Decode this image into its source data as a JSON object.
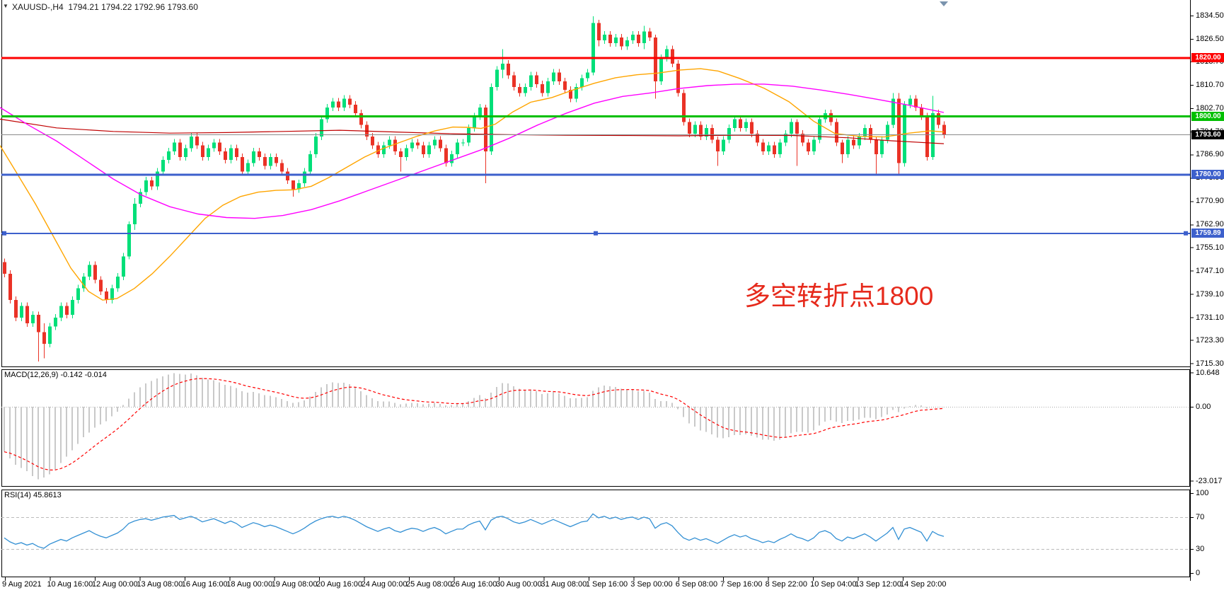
{
  "window": {
    "title_symbol": "XAUUSD-,H4",
    "title_ohlc": "1794.21 1794.22 1792.96 1793.60"
  },
  "annotation": {
    "text": "多空转折点1800",
    "color": "#e62a1c"
  },
  "colors": {
    "candle_up": "#00df79",
    "candle_down": "#ea3226",
    "line_1820": "#fe0000",
    "line_1800": "#00bf00",
    "line_blue": "#3d60cc",
    "current_price_line": "#8a8a8a",
    "current_price_badge": "#000000",
    "ma_fast": "#ffa500",
    "ma_mid": "#ff00ff",
    "ma_slow": "#c00000",
    "macd_hist": "#c9c9c9",
    "macd_signal": "#ff0000",
    "rsi_line": "#3390d4",
    "rsi_levels": "#bbbbbb",
    "axis_text": "#000000",
    "panel_border": "#000000",
    "shift_marker": "#7a93ad"
  },
  "chart_data": {
    "type": "candlestick",
    "title": "XAUUSD-,H4",
    "symbol": "XAUUSD",
    "timeframe": "H4",
    "current_ohlc": {
      "open": 1794.21,
      "high": 1794.22,
      "low": 1792.96,
      "close": 1793.6
    },
    "ylim": [
      1715.3,
      1836.4
    ],
    "grid": false,
    "candles": {
      "first_open": 1750,
      "default_wick": 1.2,
      "closes": [
        1746,
        1737,
        1731,
        1735,
        1729,
        1732,
        1726,
        1722,
        1728,
        1731,
        1735,
        1732,
        1737,
        1741,
        1745,
        1749,
        1744,
        1740,
        1737,
        1741,
        1745,
        1752,
        1763,
        1770,
        1774,
        1778,
        1776,
        1781,
        1785,
        1788,
        1791,
        1786,
        1789,
        1793,
        1790,
        1786,
        1789,
        1791,
        1788,
        1785,
        1789,
        1786,
        1781,
        1784,
        1788,
        1786,
        1783,
        1786,
        1784,
        1781,
        1778,
        1775,
        1777,
        1781,
        1787,
        1793,
        1799,
        1803,
        1805,
        1803,
        1806,
        1804,
        1801,
        1797,
        1793,
        1790,
        1787,
        1790,
        1792,
        1788,
        1786,
        1789,
        1791,
        1790,
        1787,
        1790,
        1792,
        1789,
        1784,
        1787,
        1791,
        1791,
        1796,
        1800,
        1803,
        1788,
        1810,
        1816,
        1818,
        1814,
        1810,
        1808,
        1810,
        1814,
        1811,
        1808,
        1812,
        1815,
        1812,
        1809,
        1806,
        1810,
        1813,
        1815,
        1832,
        1826,
        1828,
        1825,
        1827,
        1824,
        1826,
        1828,
        1825,
        1829,
        1827,
        1812,
        1820,
        1823,
        1818,
        1808,
        1798,
        1794,
        1797,
        1793,
        1796,
        1792,
        1788,
        1792,
        1796,
        1799,
        1796,
        1798,
        1794,
        1791,
        1788,
        1790,
        1787,
        1791,
        1794,
        1798,
        1794,
        1791,
        1788,
        1792,
        1799,
        1801,
        1798,
        1791,
        1787,
        1792,
        1790,
        1793,
        1796,
        1792,
        1787,
        1792,
        1797,
        1806,
        1784,
        1804,
        1806,
        1803,
        1800,
        1786,
        1801,
        1797,
        1793.6
      ],
      "wick_overrides": {
        "6": [
          1733,
          1716
        ],
        "7": [
          1729,
          1717
        ],
        "22": [
          1764,
          1751
        ],
        "23": [
          1772,
          1761
        ],
        "51": [
          1778,
          1772.5
        ],
        "70": [
          1789,
          1781
        ],
        "85": [
          1804,
          1777
        ],
        "88": [
          1823,
          1813
        ],
        "104": [
          1834.2,
          1814
        ],
        "105": [
          1833,
          1824
        ],
        "113": [
          1831,
          1823
        ],
        "115": [
          1828,
          1806
        ],
        "126": [
          1793,
          1783
        ],
        "140": [
          1799,
          1783
        ],
        "148": [
          1792,
          1784
        ],
        "154": [
          1793,
          1780
        ],
        "157": [
          1808,
          1796
        ],
        "158": [
          1808,
          1780
        ],
        "164": [
          1807,
          1785
        ]
      }
    },
    "hlines": [
      {
        "price": 1820.0,
        "label": "1820.00",
        "color": "#fe0000",
        "width": 3
      },
      {
        "price": 1800.0,
        "label": "1800.00",
        "color": "#00bf00",
        "width": 3
      },
      {
        "price": 1780.0,
        "label": "1780.00",
        "color": "#3d60cc",
        "width": 3
      },
      {
        "price": 1759.89,
        "label": "1759.89",
        "color": "#3d60cc",
        "width": 2,
        "selected": true
      },
      {
        "price": 1793.6,
        "label": "1793.60",
        "color": "#8a8a8a",
        "width": 1,
        "badge": "#000000"
      }
    ],
    "moving_averages": {
      "fast_orange": [
        [
          0,
          1790
        ],
        [
          25,
          1780
        ],
        [
          50,
          1770
        ],
        [
          75,
          1759
        ],
        [
          100,
          1748
        ],
        [
          125,
          1740
        ],
        [
          145,
          1737
        ],
        [
          165,
          1737.5
        ],
        [
          190,
          1741
        ],
        [
          215,
          1746
        ],
        [
          240,
          1752
        ],
        [
          265,
          1758.5
        ],
        [
          290,
          1765
        ],
        [
          315,
          1769.5
        ],
        [
          340,
          1772.5
        ],
        [
          365,
          1774
        ],
        [
          390,
          1774.6
        ],
        [
          415,
          1774.8
        ],
        [
          440,
          1776
        ],
        [
          465,
          1779
        ],
        [
          490,
          1782.5
        ],
        [
          515,
          1786
        ],
        [
          540,
          1788.8
        ],
        [
          565,
          1791
        ],
        [
          590,
          1793.2
        ],
        [
          615,
          1795
        ],
        [
          640,
          1796.3
        ],
        [
          660,
          1796.2
        ],
        [
          680,
          1795.8
        ],
        [
          700,
          1797.3
        ],
        [
          725,
          1801.5
        ],
        [
          750,
          1804.8
        ],
        [
          780,
          1806.4
        ],
        [
          810,
          1809
        ],
        [
          840,
          1811.3
        ],
        [
          870,
          1813.2
        ],
        [
          900,
          1814.2
        ],
        [
          930,
          1814.8
        ],
        [
          960,
          1815.8
        ],
        [
          990,
          1816.3
        ],
        [
          1015,
          1815.5
        ],
        [
          1045,
          1813
        ],
        [
          1080,
          1809.6
        ],
        [
          1115,
          1805
        ],
        [
          1150,
          1798.3
        ],
        [
          1180,
          1794.1
        ],
        [
          1215,
          1793.1
        ],
        [
          1250,
          1792.9
        ],
        [
          1285,
          1794.2
        ],
        [
          1315,
          1795
        ],
        [
          1334,
          1794.6
        ]
      ],
      "mid_magenta": [
        [
          0,
          1803
        ],
        [
          40,
          1797
        ],
        [
          80,
          1791.5
        ],
        [
          120,
          1785
        ],
        [
          160,
          1778.5
        ],
        [
          200,
          1773
        ],
        [
          240,
          1769
        ],
        [
          280,
          1766.5
        ],
        [
          320,
          1765.3
        ],
        [
          360,
          1765
        ],
        [
          400,
          1766
        ],
        [
          440,
          1768
        ],
        [
          480,
          1771
        ],
        [
          520,
          1774.5
        ],
        [
          560,
          1778
        ],
        [
          600,
          1781.5
        ],
        [
          640,
          1785
        ],
        [
          680,
          1788.5
        ],
        [
          720,
          1792.5
        ],
        [
          760,
          1797
        ],
        [
          800,
          1801
        ],
        [
          840,
          1804.5
        ],
        [
          880,
          1806.8
        ],
        [
          920,
          1808
        ],
        [
          960,
          1809.5
        ],
        [
          1000,
          1810.5
        ],
        [
          1040,
          1811
        ],
        [
          1080,
          1811
        ],
        [
          1120,
          1810.3
        ],
        [
          1160,
          1809
        ],
        [
          1200,
          1807.5
        ],
        [
          1240,
          1805.8
        ],
        [
          1280,
          1804
        ],
        [
          1334,
          1801.3
        ]
      ],
      "slow_darkred": [
        [
          0,
          1799
        ],
        [
          80,
          1796
        ],
        [
          160,
          1794.8
        ],
        [
          240,
          1794.2
        ],
        [
          320,
          1794.4
        ],
        [
          400,
          1794.8
        ],
        [
          480,
          1795.2
        ],
        [
          560,
          1794.6
        ],
        [
          640,
          1794
        ],
        [
          720,
          1793.7
        ],
        [
          800,
          1793.5
        ],
        [
          880,
          1793.4
        ],
        [
          960,
          1793.3
        ],
        [
          1040,
          1793.5
        ],
        [
          1120,
          1793.4
        ],
        [
          1200,
          1792.6
        ],
        [
          1260,
          1791.6
        ],
        [
          1334,
          1790.6
        ]
      ]
    },
    "price_ticks": [
      [
        "1834.50",
        1834.5
      ],
      [
        "1826.50",
        1826.5
      ],
      [
        "1818.70",
        1818.7
      ],
      [
        "1810.70",
        1810.7
      ],
      [
        "1802.70",
        1802.7
      ],
      [
        "1794.70",
        1794.7
      ],
      [
        "1786.90",
        1786.9
      ],
      [
        "1778.90",
        1778.9
      ],
      [
        "1770.90",
        1770.9
      ],
      [
        "1762.90",
        1762.9
      ],
      [
        "1755.10",
        1755.1
      ],
      [
        "1747.10",
        1747.1
      ],
      [
        "1739.10",
        1739.1
      ],
      [
        "1731.10",
        1731.1
      ],
      [
        "1723.30",
        1723.3
      ],
      [
        "1715.30",
        1715.3
      ]
    ],
    "time_labels": [
      "9 Aug 2021",
      "10 Aug 16:00",
      "12 Aug 00:00",
      "13 Aug 08:00",
      "16 Aug 16:00",
      "18 Aug 00:00",
      "19 Aug 08:00",
      "20 Aug 16:00",
      "24 Aug 00:00",
      "25 Aug 08:00",
      "26 Aug 16:00",
      "30 Aug 00:00",
      "31 Aug 08:00",
      "1 Sep 16:00",
      "3 Sep 00:00",
      "6 Sep 08:00",
      "7 Sep 16:00",
      "8 Sep 22:00",
      "10 Sep 04:00",
      "13 Sep 12:00",
      "14 Sep 20:00"
    ]
  },
  "macd": {
    "label": "MACD(12,26,9) -0.142 -0.014",
    "macd_value": -0.142,
    "signal_value": -0.014,
    "ticks": [
      [
        "10.648",
        10.648
      ],
      [
        "0.00",
        0
      ],
      [
        "-23.017",
        -23.017
      ]
    ],
    "values": [
      -14,
      -16,
      -18,
      -19,
      -20,
      -21.5,
      -22.5,
      -22,
      -21,
      -19.5,
      -17.5,
      -15.5,
      -13.5,
      -11.5,
      -9.5,
      -8,
      -6.5,
      -5.5,
      -4.5,
      -3,
      -1.5,
      0.5,
      2.5,
      4.5,
      6,
      7.2,
      8,
      8.8,
      9.5,
      10,
      10.4,
      10.2,
      10,
      10.3,
      9.8,
      9,
      8.5,
      8.2,
      7.6,
      6.8,
      6.5,
      5.8,
      4.8,
      4.4,
      4.6,
      4.2,
      3.6,
      3.4,
      3,
      2.4,
      1.8,
      1.2,
      1.4,
      2,
      3.2,
      4.6,
      6,
      7,
      7.6,
      7.4,
      7.5,
      7,
      6,
      4.8,
      3.6,
      2.6,
      1.8,
      1.6,
      1.7,
      1.2,
      0.8,
      1,
      1.2,
      1.1,
      0.8,
      1,
      1.2,
      0.9,
      0.4,
      0.5,
      0.9,
      1,
      1.8,
      2.8,
      3.6,
      2.6,
      4.4,
      6.2,
      7.4,
      7.2,
      6.4,
      5.6,
      5.2,
      5.4,
      4.8,
      4,
      4.2,
      4.6,
      4.2,
      3.4,
      2.6,
      2.6,
      2.8,
      3,
      5,
      6,
      6.6,
      6.4,
      6.2,
      5.6,
      5.4,
      5.4,
      4.8,
      5,
      4.4,
      2.4,
      1.8,
      1.8,
      1.2,
      -0.8,
      -3.2,
      -5.2,
      -6.2,
      -7.4,
      -7.8,
      -8.6,
      -9.6,
      -9.8,
      -9.4,
      -8.8,
      -8.8,
      -8.6,
      -9,
      -9.6,
      -10.2,
      -10.2,
      -10.6,
      -10.2,
      -9.4,
      -8.2,
      -7.8,
      -7.8,
      -8,
      -7.4,
      -5.8,
      -4.6,
      -4.2,
      -4.6,
      -5,
      -4.4,
      -4.4,
      -4,
      -3.4,
      -3.4,
      -3.8,
      -3.2,
      -2.4,
      -1,
      -1.6,
      -0.6,
      0.2,
      0.6,
      0.4,
      -0.6,
      0,
      -0.1,
      -0.142
    ]
  },
  "rsi": {
    "label": "RSI(14) 45.8613",
    "value": 45.8613,
    "levels": [
      70,
      30
    ],
    "ticks": [
      [
        "100",
        100
      ],
      [
        "70",
        70
      ],
      [
        "30",
        30
      ],
      [
        "0",
        0
      ]
    ],
    "values": [
      44,
      39,
      36,
      38,
      35,
      37,
      33,
      31,
      36,
      39,
      42,
      40,
      44,
      47,
      50,
      53,
      49,
      46,
      44,
      47,
      50,
      55,
      62,
      65,
      67,
      68,
      66,
      68,
      70,
      71,
      72,
      67,
      69,
      71,
      68,
      64,
      66,
      68,
      65,
      62,
      65,
      62,
      57,
      60,
      63,
      61,
      58,
      60,
      58,
      55,
      52,
      49,
      52,
      56,
      61,
      65,
      68,
      70,
      71,
      69,
      71,
      69,
      66,
      62,
      58,
      55,
      52,
      55,
      57,
      53,
      51,
      54,
      56,
      55,
      52,
      55,
      57,
      54,
      49,
      52,
      55,
      55,
      60,
      63,
      65,
      54,
      66,
      70,
      71,
      68,
      64,
      62,
      64,
      67,
      64,
      61,
      64,
      67,
      64,
      61,
      58,
      61,
      64,
      65,
      74,
      69,
      71,
      68,
      70,
      67,
      69,
      70,
      67,
      70,
      68,
      56,
      61,
      63,
      59,
      51,
      44,
      41,
      44,
      41,
      43,
      40,
      37,
      41,
      45,
      48,
      45,
      47,
      43,
      41,
      38,
      40,
      38,
      42,
      45,
      49,
      45,
      43,
      40,
      44,
      51,
      53,
      50,
      43,
      40,
      45,
      43,
      46,
      49,
      45,
      40,
      45,
      50,
      57,
      42,
      55,
      57,
      54,
      51,
      40,
      52,
      48,
      45.8613
    ]
  }
}
